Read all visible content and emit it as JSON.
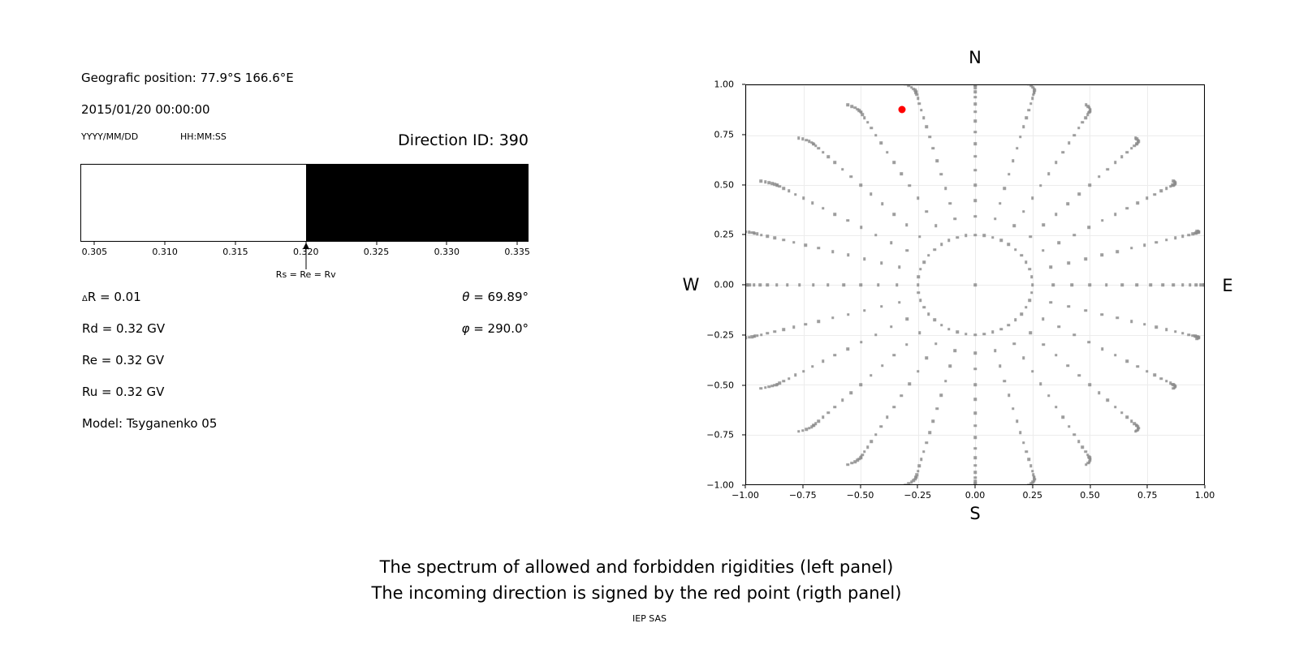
{
  "header": {
    "geo_position": "Geografic position: 77.9°S 166.6°E",
    "datetime": "2015/01/20 00:00:00",
    "date_format_label": "YYYY/MM/DD",
    "time_format_label": "HH:MM:SS",
    "direction_id": "Direction ID: 390"
  },
  "params": {
    "delta_sym": "Δ",
    "delta_rest": "R = 0.01",
    "rd": "Rd = 0.32 GV",
    "re": "Re = 0.32 GV",
    "ru": "Ru = 0.32 GV",
    "model": "Model: Tsyganenko 05",
    "theta_sym": "θ",
    "theta_rest": " = 69.89°",
    "phi_sym": "φ",
    "phi_rest": " = 290.0°"
  },
  "caption": {
    "line1": "The spectrum of allowed and forbidden rigidities (left panel)",
    "line2": "The incoming direction is signed by the red point (rigth panel)",
    "credit": "IEP SAS"
  },
  "chart_data": [
    {
      "type": "bar",
      "name": "rigidity-spectrum",
      "xlim": [
        0.304,
        0.3358
      ],
      "x_ticks": [
        {
          "v": 0.305,
          "label": "0.305"
        },
        {
          "v": 0.31,
          "label": "0.310"
        },
        {
          "v": 0.315,
          "label": "0.315"
        },
        {
          "v": 0.32,
          "label": "0.320"
        },
        {
          "v": 0.325,
          "label": "0.325"
        },
        {
          "v": 0.33,
          "label": "0.330"
        },
        {
          "v": 0.335,
          "label": "0.335"
        }
      ],
      "regions": [
        {
          "from": 0.304,
          "to": 0.32,
          "color": "#ffffff",
          "meaning": "allowed"
        },
        {
          "from": 0.32,
          "to": 0.3358,
          "color": "#000000",
          "meaning": "forbidden"
        }
      ],
      "annotation": {
        "label": "Rs = Re = Rv",
        "x": 0.32
      }
    },
    {
      "type": "scatter",
      "name": "incoming-direction-map",
      "xlim": [
        -1,
        1
      ],
      "ylim": [
        -1,
        1
      ],
      "grid": true,
      "x_ticks": [
        {
          "v": -1,
          "label": "−1.00"
        },
        {
          "v": -0.75,
          "label": "−0.75"
        },
        {
          "v": -0.5,
          "label": "−0.50"
        },
        {
          "v": -0.25,
          "label": "−0.25"
        },
        {
          "v": 0,
          "label": "0.00"
        },
        {
          "v": 0.25,
          "label": "0.25"
        },
        {
          "v": 0.5,
          "label": "0.50"
        },
        {
          "v": 0.75,
          "label": "0.75"
        },
        {
          "v": 1,
          "label": "1.00"
        }
      ],
      "y_ticks": [
        {
          "v": 1,
          "label": "1.00"
        },
        {
          "v": 0.75,
          "label": "0.75"
        },
        {
          "v": 0.5,
          "label": "0.50"
        },
        {
          "v": 0.25,
          "label": "0.25"
        },
        {
          "v": 0,
          "label": "0.00"
        },
        {
          "v": -0.25,
          "label": "−0.25"
        },
        {
          "v": -0.5,
          "label": "−0.50"
        },
        {
          "v": -0.75,
          "label": "−0.75"
        },
        {
          "v": -1,
          "label": "−1.00"
        }
      ],
      "compass": {
        "top": "N",
        "bottom": "S",
        "left": "W",
        "right": "E"
      },
      "dot_color": "#8c8c8c",
      "grid_color": "#ececec",
      "red_point": {
        "x": -0.32,
        "y": 0.88,
        "color": "#ff0000"
      },
      "center_dot": {
        "x": 0,
        "y": 0
      },
      "inner_ring": {
        "radius": 0.25,
        "num_dots": 40
      },
      "spokes": {
        "num": 24,
        "azimuth_step_deg": 15,
        "zenith_min_deg": 20,
        "zenith_max_deg": 90,
        "zenith_step_deg": 5,
        "radius_rule": "sin(zenith)",
        "tail_zeniths_deg": [
          92,
          94,
          96,
          98,
          100
        ],
        "tail_radius_growth": 0.004,
        "tail_west_drift": 0.035
      }
    }
  ]
}
